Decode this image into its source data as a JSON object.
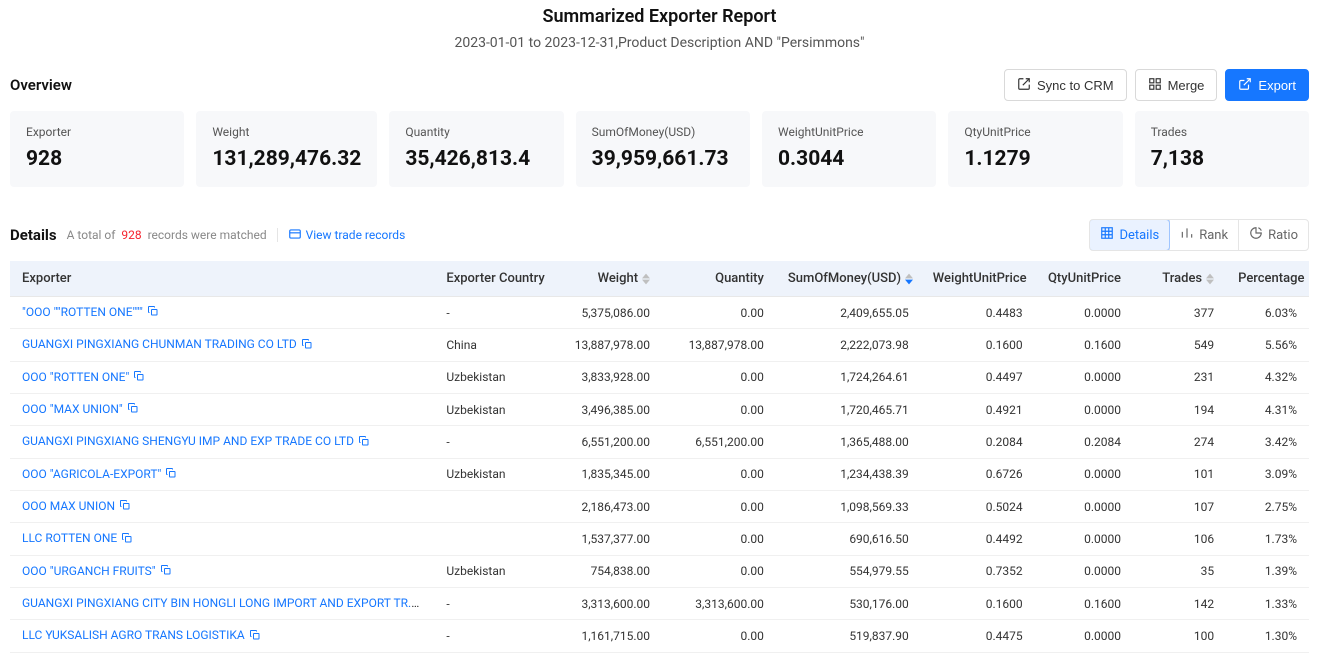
{
  "header": {
    "title": "Summarized Exporter Report",
    "subtitle": "2023-01-01 to 2023-12-31,Product Description AND \"Persimmons\""
  },
  "overview": {
    "label": "Overview",
    "buttons": {
      "sync": "Sync to CRM",
      "merge": "Merge",
      "export": "Export"
    }
  },
  "stats": [
    {
      "label": "Exporter",
      "value": "928"
    },
    {
      "label": "Weight",
      "value": "131,289,476.32"
    },
    {
      "label": "Quantity",
      "value": "35,426,813.4"
    },
    {
      "label": "SumOfMoney(USD)",
      "value": "39,959,661.73"
    },
    {
      "label": "WeightUnitPrice",
      "value": "0.3044"
    },
    {
      "label": "QtyUnitPrice",
      "value": "1.1279"
    },
    {
      "label": "Trades",
      "value": "7,138"
    }
  ],
  "details": {
    "title": "Details",
    "subPrefix": "A total of",
    "count": "928",
    "subSuffix": "records were matched",
    "viewLink": "View trade records",
    "tabs": {
      "details": "Details",
      "rank": "Rank",
      "ratio": "Ratio"
    }
  },
  "table": {
    "columns": {
      "exporter": "Exporter",
      "country": "Exporter Country",
      "weight": "Weight",
      "quantity": "Quantity",
      "sum": "SumOfMoney(USD)",
      "wup": "WeightUnitPrice",
      "qup": "QtyUnitPrice",
      "trades": "Trades",
      "pct": "Percentage"
    },
    "rows": [
      {
        "exporter": "\"OOO \"\"ROTTEN ONE\"\"\"",
        "country": "-",
        "weight": "5,375,086.00",
        "quantity": "0.00",
        "sum": "2,409,655.05",
        "wup": "0.4483",
        "qup": "0.0000",
        "trades": "377",
        "pct": "6.03%"
      },
      {
        "exporter": "GUANGXI PINGXIANG CHUNMAN TRADING CO LTD",
        "country": "China",
        "weight": "13,887,978.00",
        "quantity": "13,887,978.00",
        "sum": "2,222,073.98",
        "wup": "0.1600",
        "qup": "0.1600",
        "trades": "549",
        "pct": "5.56%"
      },
      {
        "exporter": "OOO \"ROTTEN ONE\"",
        "country": "Uzbekistan",
        "weight": "3,833,928.00",
        "quantity": "0.00",
        "sum": "1,724,264.61",
        "wup": "0.4497",
        "qup": "0.0000",
        "trades": "231",
        "pct": "4.32%"
      },
      {
        "exporter": "OOO \"MAX UNION\"",
        "country": "Uzbekistan",
        "weight": "3,496,385.00",
        "quantity": "0.00",
        "sum": "1,720,465.71",
        "wup": "0.4921",
        "qup": "0.0000",
        "trades": "194",
        "pct": "4.31%"
      },
      {
        "exporter": "GUANGXI PINGXIANG SHENGYU IMP AND EXP TRADE CO LTD",
        "country": "-",
        "weight": "6,551,200.00",
        "quantity": "6,551,200.00",
        "sum": "1,365,488.00",
        "wup": "0.2084",
        "qup": "0.2084",
        "trades": "274",
        "pct": "3.42%"
      },
      {
        "exporter": "OOO \"AGRICOLA-EXPORT\"",
        "country": "Uzbekistan",
        "weight": "1,835,345.00",
        "quantity": "0.00",
        "sum": "1,234,438.39",
        "wup": "0.6726",
        "qup": "0.0000",
        "trades": "101",
        "pct": "3.09%"
      },
      {
        "exporter": "OOO MAX UNION",
        "country": "",
        "weight": "2,186,473.00",
        "quantity": "0.00",
        "sum": "1,098,569.33",
        "wup": "0.5024",
        "qup": "0.0000",
        "trades": "107",
        "pct": "2.75%"
      },
      {
        "exporter": "LLC ROTTEN ONE",
        "country": "",
        "weight": "1,537,377.00",
        "quantity": "0.00",
        "sum": "690,616.50",
        "wup": "0.4492",
        "qup": "0.0000",
        "trades": "106",
        "pct": "1.73%"
      },
      {
        "exporter": "OOO \"URGANCH FRUITS\"",
        "country": "Uzbekistan",
        "weight": "754,838.00",
        "quantity": "0.00",
        "sum": "554,979.55",
        "wup": "0.7352",
        "qup": "0.0000",
        "trades": "35",
        "pct": "1.39%"
      },
      {
        "exporter": "GUANGXI PINGXIANG CITY BIN HONGLI LONG IMPORT AND EXPORT TR...",
        "country": "-",
        "weight": "3,313,600.00",
        "quantity": "3,313,600.00",
        "sum": "530,176.00",
        "wup": "0.1600",
        "qup": "0.1600",
        "trades": "142",
        "pct": "1.33%"
      },
      {
        "exporter": "LLC YUKSALISH AGRO TRANS LOGISTIKA",
        "country": "-",
        "weight": "1,161,715.00",
        "quantity": "0.00",
        "sum": "519,837.90",
        "wup": "0.4475",
        "qup": "0.0000",
        "trades": "100",
        "pct": "1.30%"
      }
    ]
  }
}
